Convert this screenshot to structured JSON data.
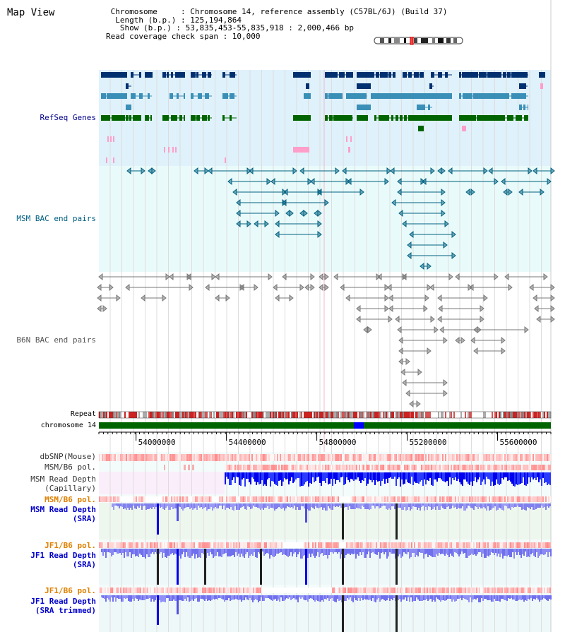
{
  "page": {
    "title": "Map View"
  },
  "header": {
    "chromosome_line": " Chromosome     : Chromosome 14, reference assembly (C57BL/6J) (Build 37)",
    "length_line": "  Length (b.p.) : 125,194,864",
    "show_line": "   Show (b.p.) : 53,835,453-55,835,918 : 2,000,466 bp",
    "coverage_line": "Read coverage check span : 10,000"
  },
  "tracks": {
    "refseq": {
      "label": "RefSeq Genes",
      "color": "#00008b",
      "bg": "#dff1fb"
    },
    "msm_bac": {
      "label": "MSM BAC end pairs",
      "color": "#006080",
      "bg": "#e9fafa"
    },
    "b6n_bac": {
      "label": "B6N BAC end pairs",
      "color": "#555555",
      "bg": "#ffffff"
    },
    "repeat": {
      "label": "Repeat"
    },
    "chromosome": {
      "label": "chromosome 14"
    },
    "dbsnp": {
      "label": "dbSNP(Mouse)"
    },
    "msm_b6_pol_1": {
      "label": "MSM/B6 pol."
    },
    "msm_depth_cap": {
      "label_1": "MSM Read Depth",
      "label_2": "(Capillary)"
    },
    "msm_b6_pol_2": {
      "label": "MSM/B6 pol.",
      "color": "#e08000"
    },
    "msm_depth_sra": {
      "label_1": "MSM Read Depth",
      "label_2": "(SRA)",
      "color": "#0000cc"
    },
    "jf1_b6_pol_1": {
      "label": "JF1/B6 pol.",
      "color": "#e08000"
    },
    "jf1_depth_sra": {
      "label_1": "JF1 Read Depth",
      "label_2": "(SRA)",
      "color": "#0000cc"
    },
    "jf1_b6_pol_2": {
      "label": "JF1/B6 pol.",
      "color": "#e08000"
    },
    "jf1_depth_trim": {
      "label_1": "JF1 Read Depth",
      "label_2": "(SRA trimmed)",
      "color": "#0000cc"
    }
  },
  "axis": {
    "ticks": [
      "54000000",
      "54400000",
      "54800000",
      "55200000",
      "55600000"
    ],
    "range": [
      53835453,
      55835918
    ]
  },
  "colors": {
    "gene_blue": "#003070",
    "gene_mid": "#3a8fb7",
    "gene_green": "#006400",
    "gene_pink": "#ff9ec8",
    "chrom_green": "#006400",
    "chrom_blue": "#0000ff"
  }
}
